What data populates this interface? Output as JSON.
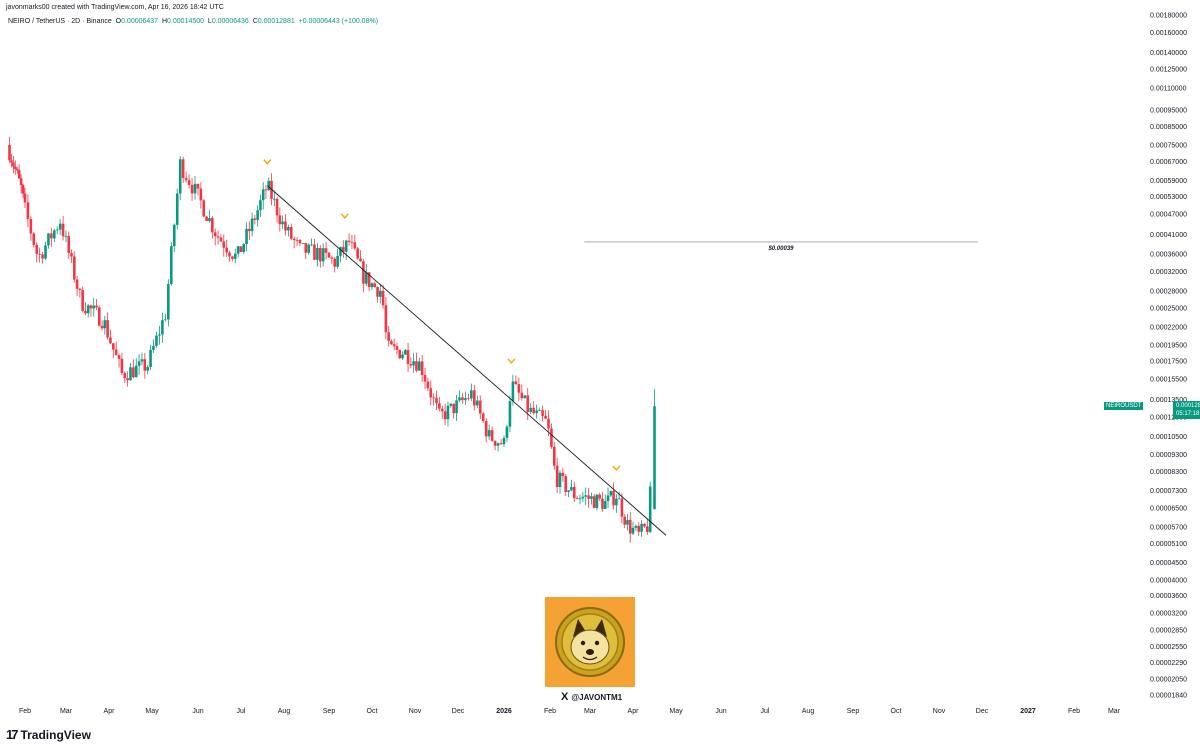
{
  "header": {
    "credit": "javonmarks00 created with TradingView.com, Apr 16, 2026 18:42 UTC",
    "symbol": "NEIRO / TetherUS · 2D · Binance",
    "o_label": "O",
    "o_value": "0.00006437",
    "h_label": "H",
    "h_value": "0.00014500",
    "l_label": "L",
    "l_value": "0.00006436",
    "c_label": "C",
    "c_value": "0.00012881",
    "change": "+0.00006443 (+100.08%)"
  },
  "price_tag": {
    "symbol": "NEIROUSDT",
    "price": "0.00012881",
    "countdown": "05:17:18"
  },
  "annotation": {
    "text": "$0.00039"
  },
  "footer": {
    "brand": "TradingView",
    "logo": "17"
  },
  "avatar": {
    "handle": "@JAVONTM1",
    "x_logo": "X"
  },
  "colors": {
    "up": "#089981",
    "down": "#f23645",
    "marker": "#f7a600",
    "trendline": "#131722",
    "price_tag": "#089981",
    "avatar_bg": "#f4a233"
  },
  "chart_data": {
    "type": "candlestick",
    "y_scale": "log",
    "ylim": [
      1.84e-05,
      0.0018
    ],
    "y_ticks": [
      "0.00180000",
      "0.00160000",
      "0.00140000",
      "0.00125000",
      "0.00110000",
      "0.00095000",
      "0.00085000",
      "0.00075000",
      "0.00067000",
      "0.00059000",
      "0.00053000",
      "0.00047000",
      "0.00041000",
      "0.00036000",
      "0.00032000",
      "0.00028000",
      "0.00025000",
      "0.00022000",
      "0.00019500",
      "0.00017500",
      "0.00015500",
      "0.00013500",
      "0.00012000",
      "0.00010500",
      "0.00009300",
      "0.00008300",
      "0.00007300",
      "0.00006500",
      "0.00005700",
      "0.00005100",
      "0.00004500",
      "0.00004000",
      "0.00003600",
      "0.00003200",
      "0.00002850",
      "0.00002550",
      "0.00002290",
      "0.00002050",
      "0.00001840"
    ],
    "x_ticks": [
      {
        "label": "Feb",
        "bold": false
      },
      {
        "label": "Mar",
        "bold": false
      },
      {
        "label": "Apr",
        "bold": false
      },
      {
        "label": "May",
        "bold": false
      },
      {
        "label": "Jun",
        "bold": false
      },
      {
        "label": "Jul",
        "bold": false
      },
      {
        "label": "Aug",
        "bold": false
      },
      {
        "label": "Sep",
        "bold": false
      },
      {
        "label": "Oct",
        "bold": false
      },
      {
        "label": "Nov",
        "bold": false
      },
      {
        "label": "Dec",
        "bold": false
      },
      {
        "label": "2026",
        "bold": true
      },
      {
        "label": "Feb",
        "bold": false
      },
      {
        "label": "Mar",
        "bold": false
      },
      {
        "label": "Apr",
        "bold": false
      },
      {
        "label": "May",
        "bold": false
      },
      {
        "label": "Jun",
        "bold": false
      },
      {
        "label": "Jul",
        "bold": false
      },
      {
        "label": "Aug",
        "bold": false
      },
      {
        "label": "Sep",
        "bold": false
      },
      {
        "label": "Oct",
        "bold": false
      },
      {
        "label": "Nov",
        "bold": false
      },
      {
        "label": "Dec",
        "bold": false
      },
      {
        "label": "2027",
        "bold": true
      },
      {
        "label": "Feb",
        "bold": false
      },
      {
        "label": "Mar",
        "bold": false
      }
    ],
    "anchors": [
      {
        "date": "2025-01-14",
        "price": 0.00075
      },
      {
        "date": "2025-01-28",
        "price": 0.00056
      },
      {
        "date": "2025-02-10",
        "price": 0.00035
      },
      {
        "date": "2025-02-25",
        "price": 0.00045
      },
      {
        "date": "2025-03-12",
        "price": 0.00026
      },
      {
        "date": "2025-03-28",
        "price": 0.00023
      },
      {
        "date": "2025-04-10",
        "price": 0.00016
      },
      {
        "date": "2025-04-28",
        "price": 0.00017
      },
      {
        "date": "2025-05-10",
        "price": 0.00024
      },
      {
        "date": "2025-05-20",
        "price": 0.00066
      },
      {
        "date": "2025-06-02",
        "price": 0.00052
      },
      {
        "date": "2025-06-14",
        "price": 0.00041
      },
      {
        "date": "2025-06-28",
        "price": 0.00035
      },
      {
        "date": "2025-07-10",
        "price": 0.00045
      },
      {
        "date": "2025-07-20",
        "price": 0.00057
      },
      {
        "date": "2025-08-01",
        "price": 0.00043
      },
      {
        "date": "2025-08-12",
        "price": 0.00037
      },
      {
        "date": "2025-08-25",
        "price": 0.00036
      },
      {
        "date": "2025-09-05",
        "price": 0.00034
      },
      {
        "date": "2025-09-15",
        "price": 0.00039
      },
      {
        "date": "2025-09-25",
        "price": 0.00031
      },
      {
        "date": "2025-10-02",
        "price": 0.00029
      },
      {
        "date": "2025-10-08",
        "price": 0.00028
      },
      {
        "date": "2025-10-12",
        "price": 0.00019
      },
      {
        "date": "2025-10-25",
        "price": 0.000185
      },
      {
        "date": "2025-11-05",
        "price": 0.00017
      },
      {
        "date": "2025-11-18",
        "price": 0.00012
      },
      {
        "date": "2025-12-01",
        "price": 0.00013
      },
      {
        "date": "2025-12-10",
        "price": 0.00014
      },
      {
        "date": "2025-12-22",
        "price": 0.000105
      },
      {
        "date": "2026-01-01",
        "price": 0.0001
      },
      {
        "date": "2026-01-06",
        "price": 0.00015
      },
      {
        "date": "2026-01-18",
        "price": 0.000125
      },
      {
        "date": "2026-01-30",
        "price": 0.000115
      },
      {
        "date": "2026-02-05",
        "price": 8e-05
      },
      {
        "date": "2026-02-18",
        "price": 7.1e-05
      },
      {
        "date": "2026-03-02",
        "price": 6.9e-05
      },
      {
        "date": "2026-03-12",
        "price": 6.7e-05
      },
      {
        "date": "2026-03-20",
        "price": 7.1e-05
      },
      {
        "date": "2026-03-28",
        "price": 5.8e-05
      },
      {
        "date": "2026-04-05",
        "price": 5.4e-05
      },
      {
        "date": "2026-04-12",
        "price": 5.8e-05
      },
      {
        "date": "2026-04-16",
        "price": 0.00012881
      }
    ],
    "spike": {
      "date": "2025-10-12",
      "low": 4.6e-05
    },
    "last": {
      "open": 6.437e-05,
      "high": 0.000145,
      "low": 6.436e-05,
      "close": 0.00012881
    },
    "trendline": [
      {
        "date": "2025-07-20",
        "price": 0.00057
      },
      {
        "date": "2026-04-24",
        "price": 5.4e-05
      }
    ],
    "hline": {
      "price": 0.00039,
      "from": "2026-02-25",
      "to": "2026-11-28",
      "label": "$0.00039"
    },
    "markers": [
      {
        "date": "2025-07-20",
        "price": 0.00067
      },
      {
        "date": "2025-09-12",
        "price": 0.000465
      },
      {
        "date": "2026-01-06",
        "price": 0.000175
      },
      {
        "date": "2026-03-20",
        "price": 8.5e-05
      }
    ]
  }
}
